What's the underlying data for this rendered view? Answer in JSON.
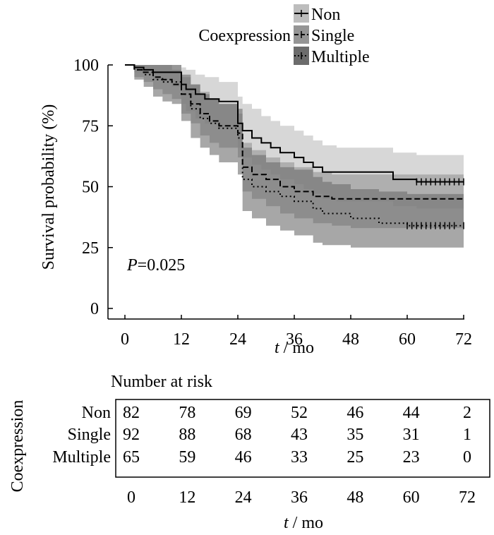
{
  "chart_data": {
    "type": "line",
    "subtype": "kaplan-meier",
    "xlabel_var": "t",
    "xlabel_unit": " / mo",
    "ylabel": "Survival probability (%)",
    "xticks": [
      0,
      12,
      24,
      36,
      48,
      60,
      72
    ],
    "yticks": [
      0,
      25,
      50,
      75,
      100
    ],
    "xlim": [
      0,
      72
    ],
    "ylim": [
      0,
      100
    ],
    "annotation_var": "P",
    "annotation_val": "=0.025",
    "legend": {
      "title": "Coexpression",
      "placement": "top-center",
      "entries": [
        "Non",
        "Single",
        "Multiple"
      ]
    },
    "series": [
      {
        "name": "Non",
        "line_style": "solid",
        "band_color": "#bdbdbd",
        "x": [
          0,
          2,
          4,
          6,
          8,
          10,
          12,
          13,
          15,
          17,
          20,
          24,
          25,
          27,
          29,
          31,
          33,
          36,
          38,
          40,
          42,
          45,
          48,
          57,
          62,
          72
        ],
        "y": [
          100,
          99,
          98,
          97,
          97,
          97,
          92,
          90,
          88,
          86,
          85,
          76,
          73,
          70,
          68,
          66,
          64,
          62,
          60,
          58,
          56,
          56,
          56,
          53,
          52,
          52
        ],
        "lower": [
          100,
          97,
          96,
          94,
          93,
          91,
          84,
          81,
          78,
          76,
          74,
          66,
          62,
          59,
          57,
          55,
          53,
          51,
          49,
          47,
          45,
          44,
          44,
          42,
          41,
          40
        ],
        "upper": [
          100,
          100,
          100,
          100,
          100,
          100,
          99,
          98,
          96,
          95,
          93,
          87,
          84,
          82,
          79,
          77,
          75,
          73,
          71,
          69,
          67,
          66,
          66,
          64,
          63,
          63
        ],
        "censor_x": [
          62,
          63,
          64,
          65,
          66,
          67,
          68,
          69,
          70,
          71,
          72
        ]
      },
      {
        "name": "Single",
        "line_style": "dashed",
        "band_color": "#959595",
        "x": [
          0,
          2,
          4,
          6,
          8,
          10,
          12,
          14,
          16,
          18,
          20,
          24,
          25,
          27,
          30,
          33,
          36,
          40,
          44,
          48,
          72
        ],
        "y": [
          100,
          98,
          97,
          95,
          94,
          92,
          88,
          84,
          80,
          77,
          75,
          72,
          58,
          55,
          53,
          50,
          48,
          46,
          45,
          45,
          45
        ],
        "lower": [
          100,
          95,
          93,
          90,
          88,
          86,
          80,
          76,
          71,
          68,
          66,
          62,
          48,
          45,
          42,
          39,
          37,
          35,
          34,
          33,
          33
        ],
        "upper": [
          100,
          100,
          100,
          100,
          100,
          98,
          95,
          92,
          89,
          86,
          84,
          80,
          68,
          65,
          62,
          60,
          58,
          56,
          55,
          55,
          55
        ]
      },
      {
        "name": "Multiple",
        "line_style": "dotted",
        "band_color": "#6c6c6c",
        "x": [
          0,
          2,
          4,
          6,
          8,
          10,
          12,
          14,
          16,
          18,
          20,
          24,
          25,
          27,
          30,
          33,
          36,
          40,
          42,
          44,
          48,
          54,
          60,
          72
        ],
        "y": [
          100,
          98,
          96,
          94,
          93,
          93,
          88,
          82,
          78,
          76,
          74,
          70,
          53,
          50,
          48,
          46,
          44,
          41,
          39,
          39,
          37,
          35,
          34,
          34
        ],
        "lower": [
          100,
          94,
          91,
          87,
          85,
          84,
          77,
          70,
          66,
          63,
          60,
          55,
          40,
          37,
          34,
          32,
          30,
          27,
          26,
          26,
          25,
          25,
          25,
          25
        ],
        "upper": [
          100,
          100,
          100,
          100,
          100,
          100,
          96,
          92,
          88,
          86,
          84,
          82,
          66,
          63,
          60,
          58,
          57,
          54,
          52,
          51,
          49,
          48,
          47,
          47
        ],
        "censor_x": [
          60,
          61,
          62,
          63,
          64,
          65,
          66,
          67,
          68,
          69,
          70,
          72
        ]
      }
    ],
    "risk_table": {
      "title": "Number at risk",
      "group_label": "Coexpression",
      "xlabel_var": "t",
      "xlabel_unit": " / mo",
      "rows": [
        {
          "name": "Non",
          "values": [
            82,
            78,
            69,
            52,
            46,
            44,
            2
          ]
        },
        {
          "name": "Single",
          "values": [
            92,
            88,
            68,
            43,
            35,
            31,
            1
          ]
        },
        {
          "name": "Multiple",
          "values": [
            65,
            59,
            46,
            33,
            25,
            23,
            0
          ]
        }
      ]
    }
  }
}
